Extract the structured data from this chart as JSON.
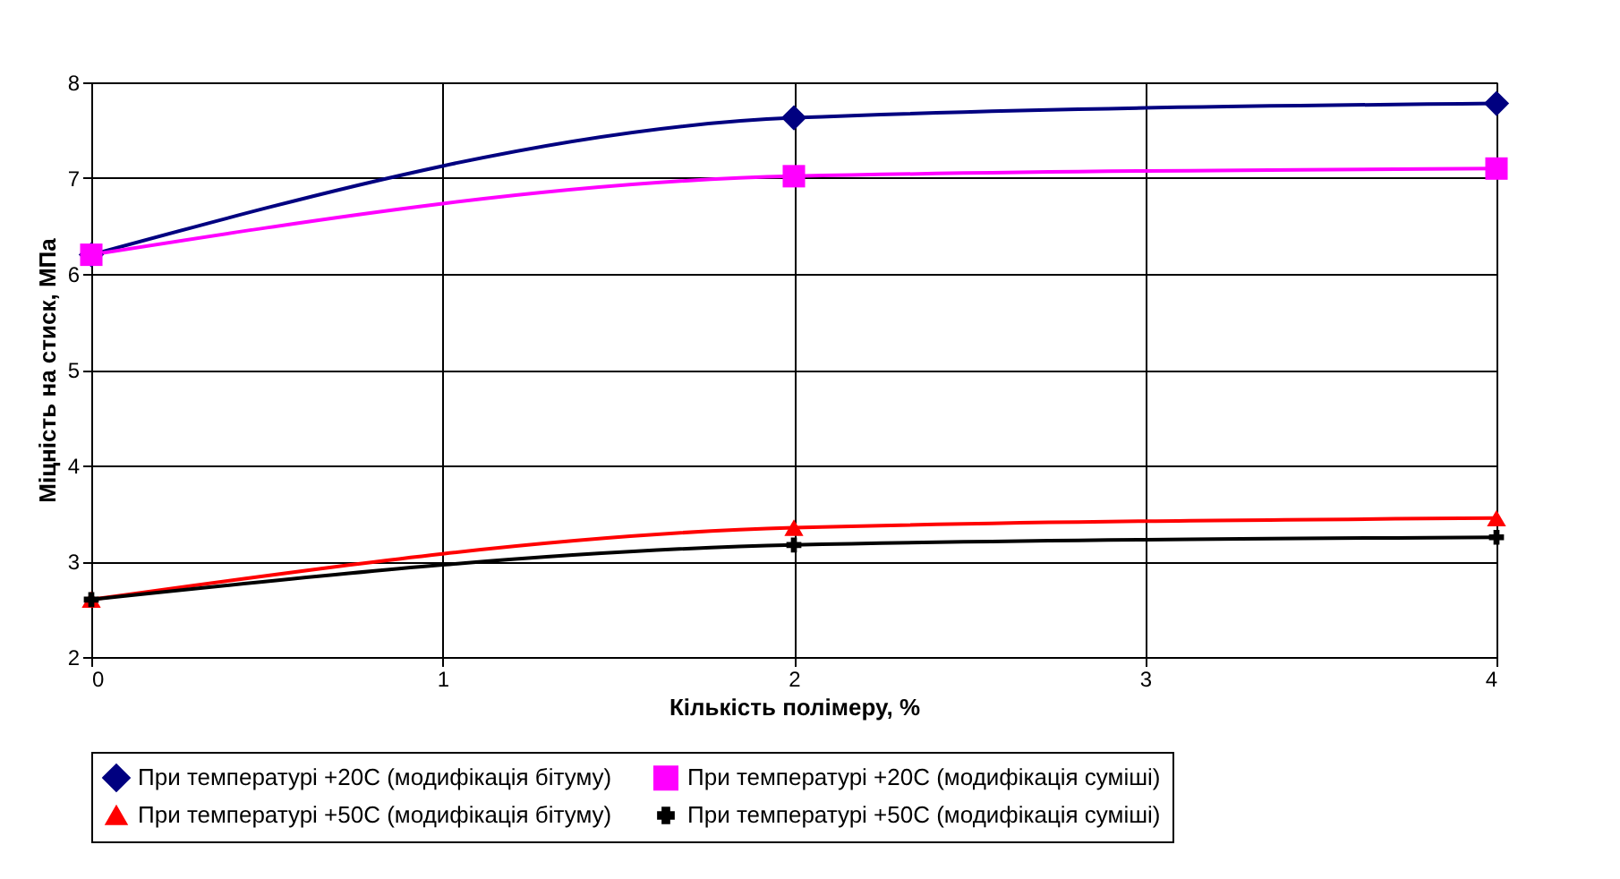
{
  "chart_data": {
    "type": "line",
    "xlabel": "Кількість полімеру, %",
    "ylabel": "Міцність на стиск, МПа",
    "x": [
      0,
      2,
      4
    ],
    "xlim": [
      0,
      4
    ],
    "xticks": [
      0,
      1,
      2,
      3,
      4
    ],
    "ylim": [
      2,
      8
    ],
    "yticks": [
      2,
      3,
      4,
      5,
      6,
      7,
      8
    ],
    "grid": true,
    "legend": "bottom",
    "series": [
      {
        "name": "При температурі +20С (модифікація бітуму)",
        "color": "#000080",
        "marker": "diamond",
        "values": [
          6.2,
          7.63,
          7.78
        ]
      },
      {
        "name": "При температурі +20С (модифікація суміші)",
        "color": "#ff00ff",
        "marker": "square",
        "values": [
          6.2,
          7.02,
          7.1
        ]
      },
      {
        "name": "При температурі +50С (модифікація бітуму)",
        "color": "#ff0000",
        "marker": "triangle",
        "values": [
          2.6,
          3.35,
          3.45
        ]
      },
      {
        "name": "При температурі +50С (модифікація суміші)",
        "color": "#000000",
        "marker": "cross",
        "values": [
          2.6,
          3.17,
          3.25
        ]
      }
    ]
  }
}
